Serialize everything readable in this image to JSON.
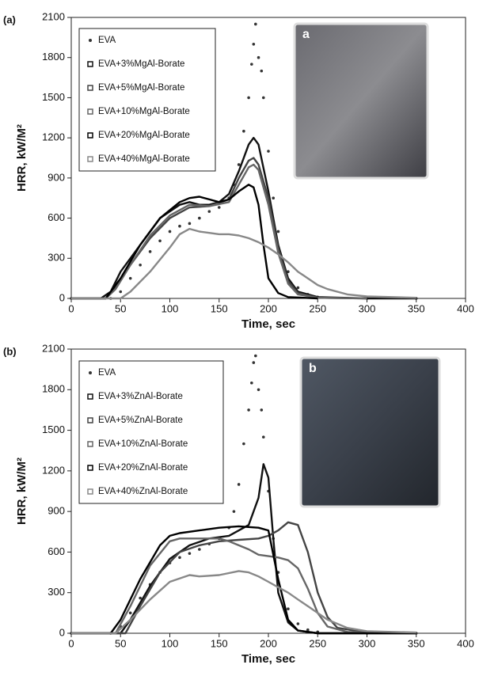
{
  "chart_data": [
    {
      "type": "line",
      "panel_label": "(a)",
      "inset_label": "a",
      "x_label": "Time, sec",
      "y_label": "HRR, kW/M²",
      "xlim": [
        0,
        400
      ],
      "ylim": [
        0,
        2100
      ],
      "xticks": [
        0,
        50,
        100,
        150,
        200,
        250,
        300,
        350,
        400
      ],
      "yticks": [
        0,
        300,
        600,
        900,
        1200,
        1500,
        1800,
        2100
      ],
      "series": [
        {
          "name": "EVA",
          "color": "#333333",
          "style": "points",
          "x": [
            0,
            40,
            50,
            60,
            70,
            80,
            90,
            100,
            110,
            120,
            130,
            140,
            150,
            160,
            165,
            170,
            175,
            180,
            183,
            185,
            187,
            190,
            193,
            195,
            200,
            205,
            210,
            220,
            230,
            240,
            250,
            300,
            350
          ],
          "values": [
            0,
            0,
            50,
            150,
            250,
            350,
            430,
            500,
            540,
            560,
            600,
            650,
            680,
            750,
            850,
            1000,
            1250,
            1500,
            1750,
            1900,
            2050,
            1800,
            1700,
            1500,
            1100,
            750,
            500,
            200,
            80,
            30,
            10,
            0,
            0
          ]
        },
        {
          "name": "EVA+3%MgAl-Borate",
          "color": "#111111",
          "style": "line",
          "x": [
            0,
            30,
            40,
            50,
            60,
            70,
            80,
            90,
            100,
            110,
            120,
            130,
            140,
            150,
            160,
            170,
            180,
            185,
            190,
            200,
            210,
            220,
            230,
            250,
            300,
            350
          ],
          "values": [
            0,
            0,
            50,
            200,
            300,
            400,
            500,
            600,
            650,
            700,
            720,
            700,
            700,
            720,
            780,
            950,
            1150,
            1200,
            1150,
            800,
            400,
            150,
            50,
            10,
            0,
            0
          ]
        },
        {
          "name": "EVA+5%MgAl-Borate",
          "color": "#444444",
          "style": "line",
          "x": [
            0,
            35,
            45,
            60,
            80,
            100,
            120,
            140,
            160,
            170,
            180,
            185,
            190,
            200,
            210,
            220,
            230,
            250,
            300
          ],
          "values": [
            0,
            0,
            80,
            250,
            450,
            600,
            680,
            690,
            740,
            900,
            1030,
            1050,
            1000,
            750,
            380,
            130,
            40,
            5,
            0
          ]
        },
        {
          "name": "EVA+10%MgAl-Borate",
          "color": "#666666",
          "style": "line",
          "x": [
            0,
            35,
            45,
            60,
            80,
            100,
            120,
            140,
            160,
            170,
            180,
            185,
            190,
            200,
            210,
            220,
            230,
            250,
            300
          ],
          "values": [
            0,
            0,
            70,
            250,
            470,
            620,
            700,
            690,
            720,
            850,
            980,
            1000,
            960,
            700,
            340,
            110,
            30,
            5,
            0
          ]
        },
        {
          "name": "EVA+20%MgAl-Borate",
          "color": "#000000",
          "style": "line",
          "x": [
            0,
            35,
            50,
            70,
            90,
            110,
            120,
            130,
            140,
            150,
            160,
            170,
            180,
            185,
            190,
            195,
            200,
            210,
            220,
            250
          ],
          "values": [
            0,
            0,
            150,
            400,
            600,
            720,
            750,
            760,
            740,
            720,
            740,
            800,
            850,
            830,
            700,
            400,
            150,
            40,
            10,
            0
          ]
        },
        {
          "name": "EVA+40%MgAl-Borate",
          "color": "#888888",
          "style": "line",
          "x": [
            0,
            50,
            60,
            80,
            100,
            110,
            120,
            130,
            140,
            150,
            160,
            170,
            180,
            190,
            200,
            210,
            220,
            230,
            240,
            250,
            260,
            280,
            300,
            350
          ],
          "values": [
            0,
            0,
            50,
            200,
            380,
            480,
            520,
            500,
            490,
            480,
            480,
            470,
            450,
            420,
            380,
            330,
            270,
            200,
            150,
            100,
            70,
            30,
            15,
            5
          ]
        }
      ]
    },
    {
      "type": "line",
      "panel_label": "(b)",
      "inset_label": "b",
      "x_label": "Time, sec",
      "y_label": "HRR, kW/M²",
      "xlim": [
        0,
        400
      ],
      "ylim": [
        0,
        2100
      ],
      "xticks": [
        0,
        50,
        100,
        150,
        200,
        250,
        300,
        350,
        400
      ],
      "yticks": [
        0,
        300,
        600,
        900,
        1200,
        1500,
        1800,
        2100
      ],
      "series": [
        {
          "name": "EVA",
          "color": "#333333",
          "style": "points",
          "x": [
            0,
            40,
            50,
            60,
            70,
            80,
            90,
            100,
            110,
            120,
            130,
            140,
            150,
            160,
            165,
            170,
            175,
            180,
            183,
            185,
            187,
            190,
            193,
            195,
            200,
            205,
            210,
            220,
            230,
            240,
            250,
            300,
            350
          ],
          "values": [
            0,
            0,
            50,
            150,
            260,
            360,
            450,
            520,
            560,
            590,
            620,
            660,
            700,
            780,
            900,
            1100,
            1400,
            1650,
            1850,
            2000,
            2050,
            1800,
            1650,
            1450,
            1050,
            700,
            450,
            180,
            70,
            25,
            10,
            0,
            0
          ]
        },
        {
          "name": "EVA+3%ZnAl-Borate",
          "color": "#111111",
          "style": "line",
          "x": [
            0,
            50,
            60,
            80,
            100,
            120,
            140,
            160,
            180,
            190,
            195,
            200,
            205,
            210,
            220,
            230,
            250,
            350
          ],
          "values": [
            0,
            0,
            100,
            350,
            550,
            650,
            700,
            720,
            800,
            1000,
            1250,
            1150,
            700,
            300,
            80,
            20,
            0,
            0
          ]
        },
        {
          "name": "EVA+5%ZnAl-Borate",
          "color": "#444444",
          "style": "line",
          "x": [
            0,
            55,
            70,
            90,
            110,
            130,
            150,
            170,
            190,
            200,
            210,
            220,
            230,
            240,
            250,
            260,
            270,
            300,
            350
          ],
          "values": [
            0,
            0,
            200,
            450,
            600,
            650,
            680,
            690,
            700,
            720,
            760,
            820,
            800,
            600,
            300,
            120,
            40,
            5,
            0
          ]
        },
        {
          "name": "EVA+10%ZnAl-Borate",
          "color": "#666666",
          "style": "line",
          "x": [
            0,
            45,
            60,
            80,
            100,
            110,
            130,
            150,
            160,
            170,
            180,
            190,
            200,
            210,
            220,
            230,
            240,
            250,
            260,
            280,
            350
          ],
          "values": [
            0,
            0,
            200,
            500,
            680,
            700,
            700,
            700,
            680,
            650,
            620,
            580,
            570,
            560,
            540,
            480,
            330,
            150,
            50,
            10,
            0
          ]
        },
        {
          "name": "EVA+20%ZnAl-Borate",
          "color": "#000000",
          "style": "line",
          "x": [
            0,
            40,
            50,
            70,
            90,
            100,
            110,
            130,
            150,
            170,
            190,
            200,
            210,
            220,
            230,
            250,
            350
          ],
          "values": [
            0,
            0,
            100,
            400,
            650,
            720,
            740,
            760,
            780,
            790,
            780,
            760,
            400,
            100,
            20,
            0,
            0
          ]
        },
        {
          "name": "EVA+40%ZnAl-Borate",
          "color": "#888888",
          "style": "line",
          "x": [
            0,
            45,
            60,
            80,
            100,
            120,
            130,
            150,
            170,
            180,
            190,
            200,
            210,
            220,
            230,
            240,
            250,
            260,
            280,
            300,
            350
          ],
          "values": [
            0,
            0,
            100,
            250,
            380,
            430,
            420,
            430,
            460,
            450,
            420,
            380,
            340,
            300,
            250,
            200,
            150,
            100,
            40,
            15,
            5
          ]
        }
      ]
    }
  ]
}
